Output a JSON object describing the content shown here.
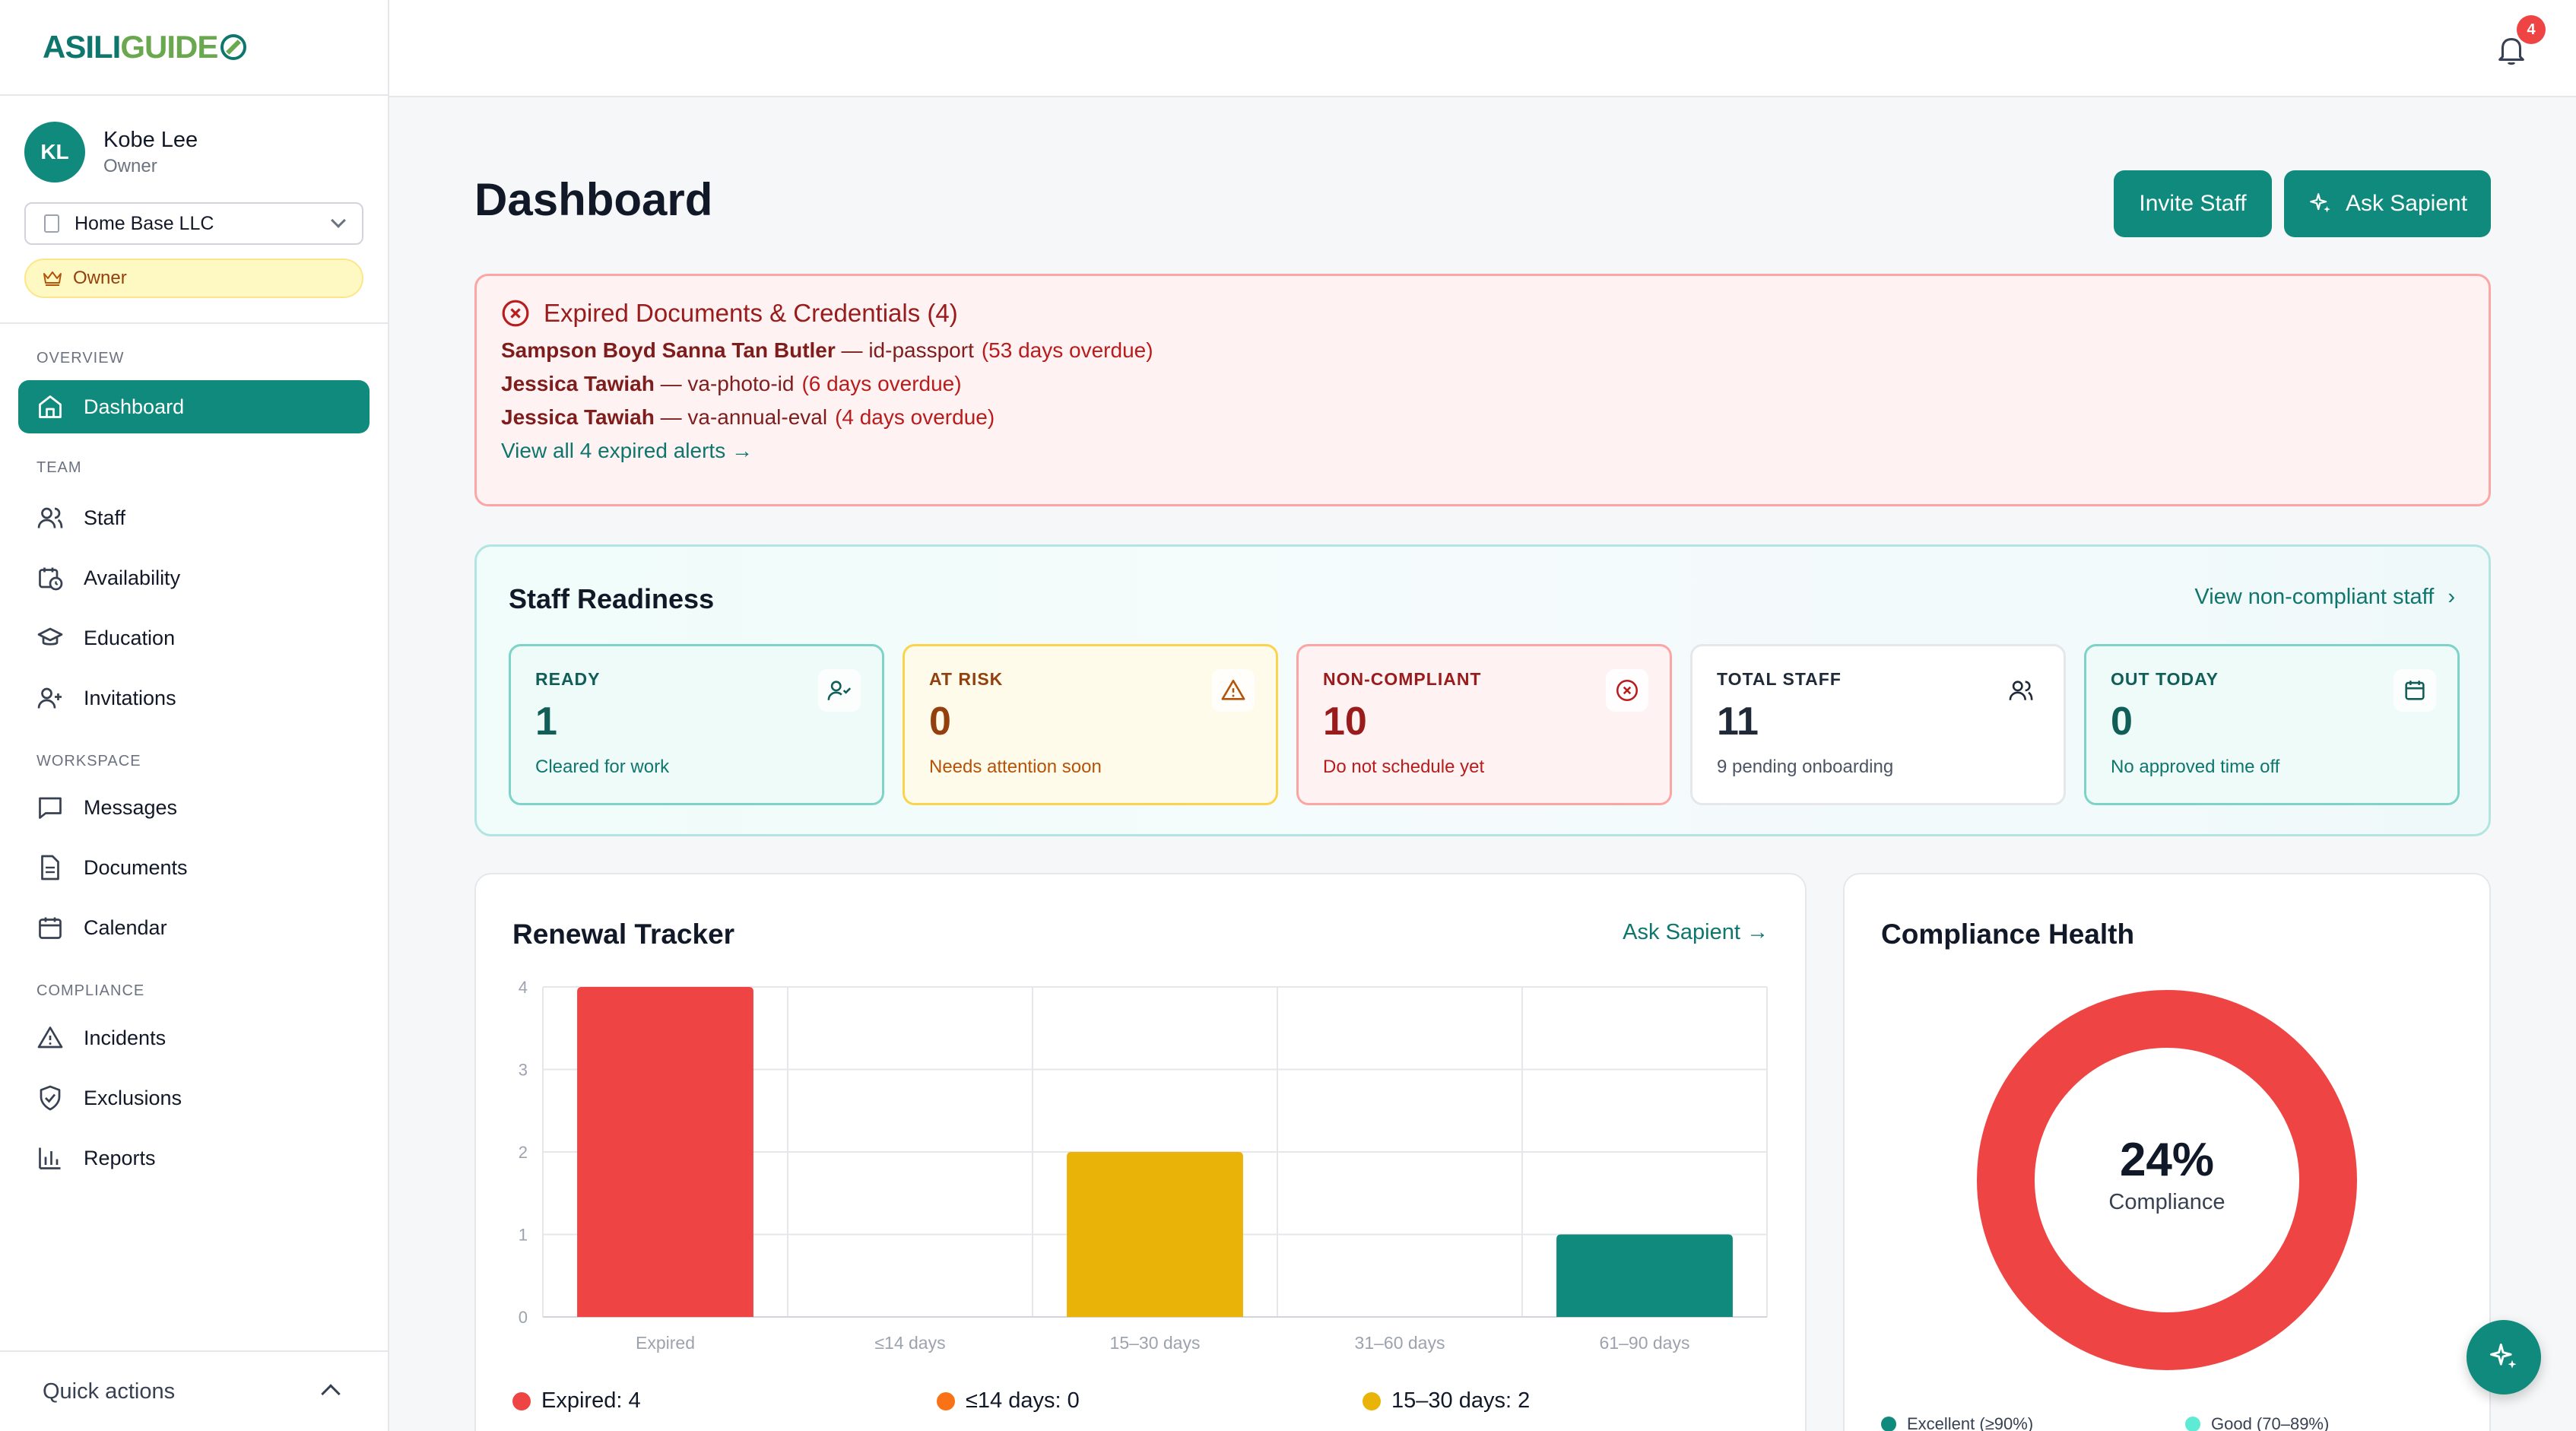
{
  "brand": {
    "part1": "ASILI",
    "part2": "GUIDE"
  },
  "user": {
    "initials": "KL",
    "name": "Kobe Lee",
    "role": "Owner"
  },
  "org": {
    "selected": "Home Base LLC"
  },
  "badge": {
    "label": "Owner"
  },
  "nav": {
    "overview_label": "OVERVIEW",
    "team_label": "TEAM",
    "workspace_label": "WORKSPACE",
    "compliance_label": "COMPLIANCE",
    "dashboard": "Dashboard",
    "staff": "Staff",
    "availability": "Availability",
    "education": "Education",
    "invitations": "Invitations",
    "messages": "Messages",
    "documents": "Documents",
    "calendar": "Calendar",
    "incidents": "Incidents",
    "exclusions": "Exclusions",
    "reports": "Reports"
  },
  "quick_actions": "Quick actions",
  "notifications": {
    "count": "4"
  },
  "page": {
    "title": "Dashboard",
    "invite_label": "Invite Staff",
    "ask_label": "Ask Sapient"
  },
  "alert": {
    "title": "Expired Documents & Credentials (4)",
    "items": [
      {
        "name": "Sampson Boyd Sanna Tan Butler",
        "doc": " — id-passport",
        "overdue": "(53 days overdue)"
      },
      {
        "name": "Jessica Tawiah",
        "doc": " — va-photo-id",
        "overdue": "(6 days overdue)"
      },
      {
        "name": "Jessica Tawiah",
        "doc": " — va-annual-eval",
        "overdue": "(4 days overdue)"
      }
    ],
    "link": "View all 4 expired alerts →"
  },
  "readiness": {
    "title": "Staff Readiness",
    "link": "View non-compliant staff",
    "cards": [
      {
        "label": "READY",
        "value": "1",
        "sub": "Cleared for work"
      },
      {
        "label": "AT RISK",
        "value": "0",
        "sub": "Needs attention soon"
      },
      {
        "label": "NON-COMPLIANT",
        "value": "10",
        "sub": "Do not schedule yet"
      },
      {
        "label": "TOTAL STAFF",
        "value": "11",
        "sub": "9 pending onboarding"
      },
      {
        "label": "OUT TODAY",
        "value": "0",
        "sub": "No approved time off"
      }
    ]
  },
  "renewal": {
    "title": "Renewal Tracker",
    "link": "Ask Sapient →",
    "legend": [
      "Expired: 4",
      "≤14 days: 0",
      "15–30 days: 2"
    ]
  },
  "health": {
    "title": "Compliance Health",
    "percent": "24%",
    "label": "Compliance",
    "ring_value": 0.24,
    "legend": [
      "Excellent (≥90%)",
      "Good (70–89%)"
    ]
  },
  "chart_data": {
    "type": "bar",
    "categories": [
      "Expired",
      "≤14 days",
      "15–30 days",
      "31–60 days",
      "61–90 days"
    ],
    "values": [
      4,
      0,
      2,
      0,
      1
    ],
    "colors": [
      "#ef4444",
      "#f97316",
      "#eab308",
      "#0f8a7c",
      "#0f8a7c"
    ],
    "yticks": [
      "0",
      "1",
      "2",
      "3",
      "4"
    ],
    "ylim": [
      0,
      4
    ],
    "grid": true,
    "legend_position": "bottom"
  },
  "colors": {
    "accent": "#0f8a7c",
    "danger": "#ef4444",
    "warning": "#eab308"
  }
}
